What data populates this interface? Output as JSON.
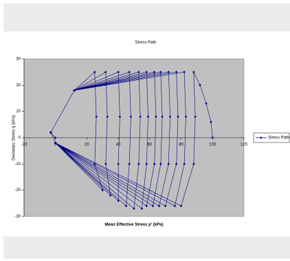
{
  "chart_data": {
    "type": "line",
    "title": "Stress Path",
    "x_label": "Mean Effective Stress p' (kPa)",
    "y_label": "Deviatoric Stress q (kPa)",
    "xlim": [
      -20,
      120
    ],
    "xticks": [
      -20,
      0,
      20,
      40,
      60,
      80,
      100,
      120
    ],
    "ylim": [
      -30,
      30
    ],
    "yticks": [
      -30,
      -20,
      -10,
      0,
      10,
      20,
      30
    ],
    "legend": "right",
    "series": [
      {
        "name": "Stress Path",
        "color": "#000080",
        "x": [
          100,
          99,
          96,
          92,
          88,
          89,
          88,
          80,
          0,
          -3,
          12,
          82,
          83,
          82,
          76,
          0,
          -3,
          12,
          77,
          78,
          77,
          70,
          0,
          -3,
          12,
          72,
          73,
          72,
          66,
          0,
          -3,
          12,
          67,
          68,
          67,
          62,
          0,
          -3,
          12,
          63,
          64,
          63,
          58,
          0,
          -3,
          12,
          58,
          59,
          58,
          55,
          0,
          -3,
          12,
          53,
          54,
          53,
          50,
          0,
          -3,
          12,
          47,
          48,
          47,
          45,
          0,
          -3,
          12,
          40,
          41,
          40,
          40,
          0,
          -3,
          12,
          32,
          33,
          32,
          35,
          0,
          -3,
          12,
          25,
          26,
          25,
          30,
          0,
          -3,
          0
        ],
        "values": [
          0,
          6,
          13,
          20,
          25,
          8,
          -10,
          -26,
          -2,
          2,
          18,
          25,
          8,
          -10,
          -26,
          -2,
          2,
          18,
          25,
          8,
          -10,
          -26,
          -2,
          2,
          18,
          25,
          8,
          -10,
          -26,
          -2,
          2,
          18,
          25,
          8,
          -10,
          -26,
          -2,
          2,
          18,
          25,
          8,
          -10,
          -26,
          -2,
          2,
          18,
          25,
          8,
          -10,
          -27,
          -2,
          2,
          18,
          25,
          8,
          -10,
          -27,
          -2,
          2,
          18,
          25,
          8,
          -10,
          -26,
          -2,
          2,
          18,
          25,
          8,
          -10,
          -24,
          -2,
          2,
          18,
          25,
          8,
          -10,
          -22,
          -2,
          2,
          18,
          25,
          8,
          -10,
          -20,
          -2,
          2,
          0
        ]
      }
    ]
  }
}
